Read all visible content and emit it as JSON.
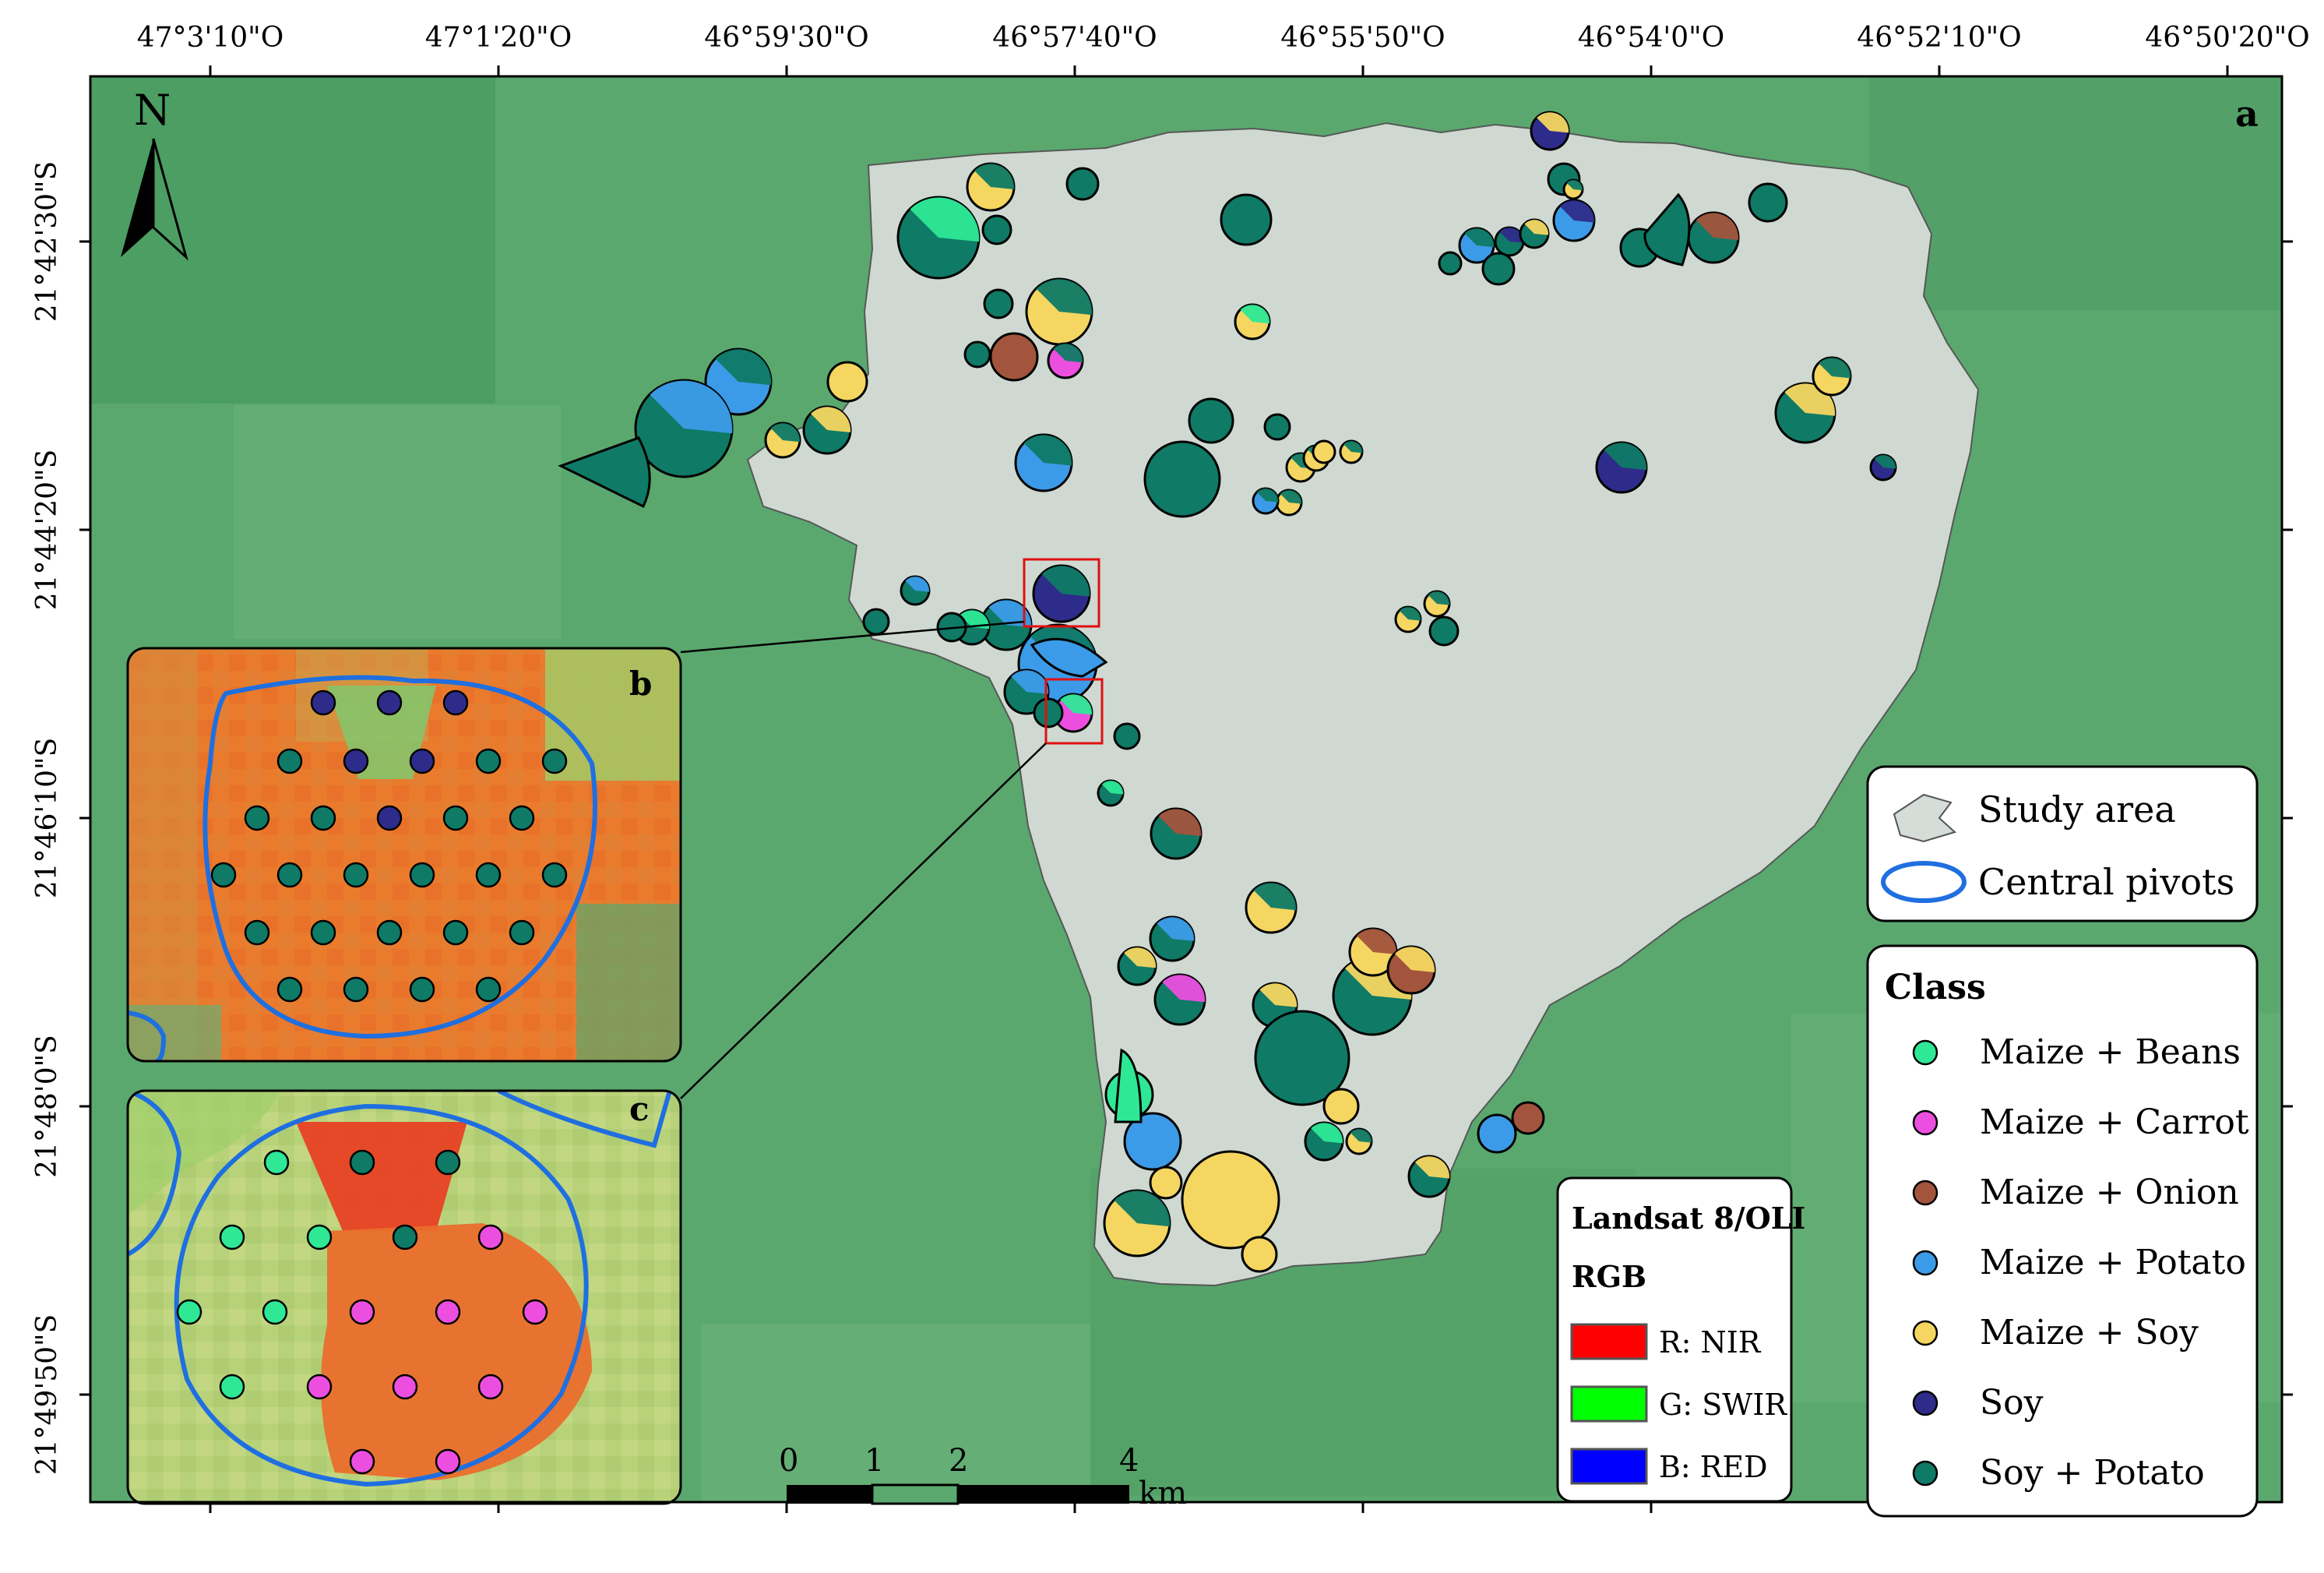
{
  "panel_labels": {
    "a": "a",
    "b": "b",
    "c": "c"
  },
  "north_label": "N",
  "top_ticks": [
    "47°3'10\"O",
    "47°1'20\"O",
    "46°59'30\"O",
    "46°57'40\"O",
    "46°55'50\"O",
    "46°54'0\"O",
    "46°52'10\"O",
    "46°50'20\"O"
  ],
  "left_ticks": [
    "21°42'30\"S",
    "21°44'20\"S",
    "21°46'10\"S",
    "21°48'0\"S",
    "21°49'50\"S"
  ],
  "legend_area": {
    "study_area": "Study area",
    "central_pivots": "Central pivots"
  },
  "legend_class": {
    "title": "Class",
    "items": [
      {
        "label": "Maize + Beans",
        "color": "#2ee896"
      },
      {
        "label": "Maize + Carrot",
        "color": "#ec4fe0"
      },
      {
        "label": "Maize + Onion",
        "color": "#a2543c"
      },
      {
        "label": "Maize + Potato",
        "color": "#3c9be8"
      },
      {
        "label": "Maize + Soy",
        "color": "#f4d660"
      },
      {
        "label": "Soy",
        "color": "#2e2c8a"
      },
      {
        "label": "Soy + Potato",
        "color": "#0f7a66"
      }
    ]
  },
  "legend_rgb": {
    "title": "Landsat 8/OLI",
    "subtitle": "RGB",
    "items": [
      {
        "label": "R: NIR",
        "color": "#ff0000"
      },
      {
        "label": "G: SWIR",
        "color": "#00ff00"
      },
      {
        "label": "B: RED",
        "color": "#0000ff"
      }
    ]
  },
  "scale_bar": {
    "labels": [
      "0",
      "1",
      "2",
      "4"
    ],
    "unit": "km"
  },
  "colors": {
    "background_green": "#5aa86e",
    "study_area": "#d6dcd8",
    "pivot_outline": "#1f6fe0",
    "false_color_orange": "#f26a22"
  }
}
